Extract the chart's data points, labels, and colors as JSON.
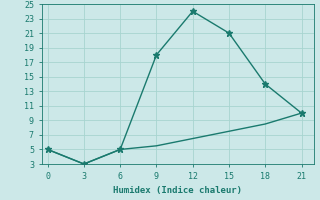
{
  "xlabel": "Humidex (Indice chaleur)",
  "line1_x": [
    0,
    3,
    6,
    9,
    12,
    15,
    18,
    21
  ],
  "line1_y": [
    5,
    3,
    5,
    18,
    24,
    21,
    14,
    10
  ],
  "line2_x": [
    0,
    3,
    6,
    9,
    12,
    15,
    18,
    21
  ],
  "line2_y": [
    5,
    3,
    5,
    5.5,
    6.5,
    7.5,
    8.5,
    10
  ],
  "line_color": "#1a7a6e",
  "bg_color": "#cce8e8",
  "grid_color": "#a8d4d0",
  "xlim": [
    -0.5,
    22
  ],
  "ylim": [
    3,
    25
  ],
  "xticks": [
    0,
    3,
    6,
    9,
    12,
    15,
    18,
    21
  ],
  "yticks": [
    3,
    5,
    7,
    9,
    11,
    13,
    15,
    17,
    19,
    21,
    23,
    25
  ],
  "marker": "*",
  "marker_size": 5,
  "linewidth": 1.0
}
